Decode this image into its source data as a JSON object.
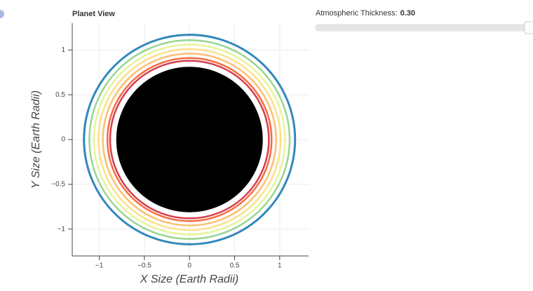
{
  "chart_data": {
    "type": "rings",
    "title": "Planet View",
    "x_label": "X Size (Earth Radii)",
    "y_label": "Y Size (Earth Radii)",
    "xlim": [
      -1.3,
      1.32
    ],
    "ylim": [
      -1.3,
      1.3
    ],
    "xticks": [
      {
        "value": -1,
        "label": "−1"
      },
      {
        "value": -0.5,
        "label": "−0.5"
      },
      0,
      0.5,
      1
    ],
    "yticks": [
      {
        "value": -1,
        "label": "−1"
      },
      {
        "value": -0.5,
        "label": "−0.5"
      },
      0,
      0.5,
      1
    ],
    "grid": true,
    "rings": [
      {
        "r": 1.17,
        "color": "#3288bd"
      },
      {
        "r": 1.11,
        "color": "#99d594"
      },
      {
        "r": 1.06,
        "color": "#e6f598"
      },
      {
        "r": 1.01,
        "color": "#fee08b"
      },
      {
        "r": 0.96,
        "color": "#fdbf6f"
      },
      {
        "r": 0.91,
        "color": "#f46d43"
      },
      {
        "r": 0.88,
        "color": "#d53e4f"
      }
    ],
    "planet": {
      "r": 0.82,
      "color": "#000000"
    }
  },
  "slider": {
    "label": "Atmospheric Thickness:",
    "value": {
      "value": 0.3,
      "label": "0.30"
    },
    "start": 0,
    "end": 0.3
  }
}
